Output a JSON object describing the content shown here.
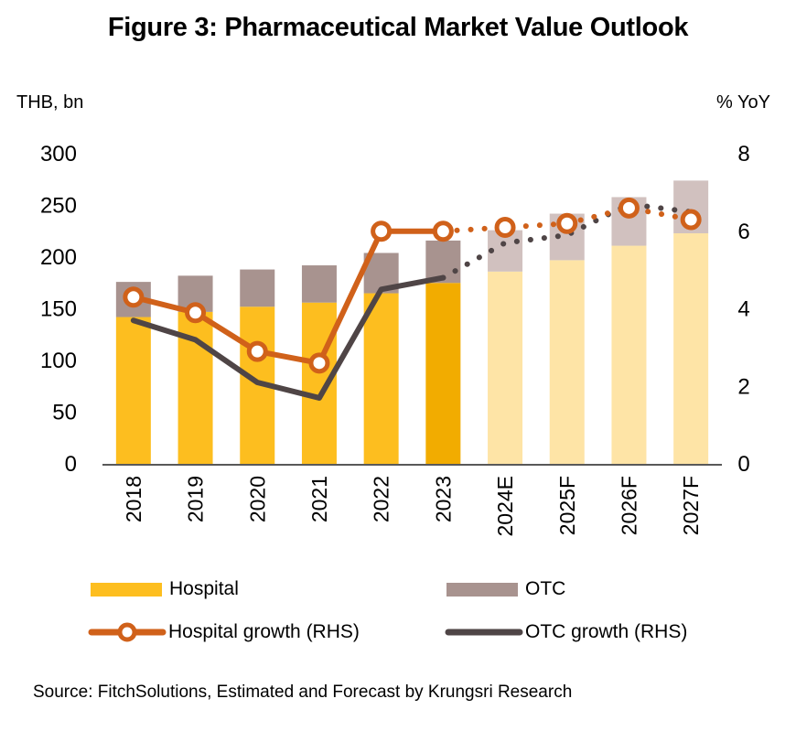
{
  "title": "Figure 3: Pharmaceutical Market Value Outlook",
  "source": "Source: FitchSolutions, Estimated and Forecast by Krungsri Research",
  "colors": {
    "hospital": "#FDBE1F",
    "hospital_latest": "#F2AC00",
    "hospital_forecast": "#FEE4A6",
    "otc": "#A8938F",
    "otc_forecast": "#D1C1BF",
    "hospital_growth": "#D0611A",
    "otc_growth": "#4F4546",
    "axis": "#595959"
  },
  "legend": [
    {
      "key": "hospital",
      "label": "Hospital"
    },
    {
      "key": "otc",
      "label": "OTC"
    },
    {
      "key": "hospital_growth",
      "label": "Hospital growth (RHS)"
    },
    {
      "key": "otc_growth",
      "label": "OTC growth (RHS)"
    }
  ],
  "chart_data": {
    "type": "bar",
    "title": "Figure 3: Pharmaceutical Market Value Outlook",
    "ylabel": "THB, bn",
    "y2label": "% YoY",
    "ylim": [
      0,
      300
    ],
    "y2lim": [
      0,
      8
    ],
    "yticks": [
      0,
      50,
      100,
      150,
      200,
      250,
      300
    ],
    "y2ticks": [
      0,
      2,
      4,
      6,
      8
    ],
    "grid": false,
    "legend_position": "bottom",
    "categories": [
      "2018",
      "2019",
      "2020",
      "2021",
      "2022",
      "2023",
      "2024E",
      "2025F",
      "2026F",
      "2027F"
    ],
    "forecast_start_index": 6,
    "highlight_index": 5,
    "series": [
      {
        "name": "Hospital",
        "type": "stacked-bar",
        "axis": "left",
        "values": [
          142,
          147,
          152,
          156,
          165,
          175,
          186,
          197,
          211,
          223
        ]
      },
      {
        "name": "OTC",
        "type": "stacked-bar",
        "axis": "left",
        "values": [
          34,
          35,
          36,
          36,
          39,
          41,
          40,
          45,
          47,
          51
        ]
      },
      {
        "name": "Hospital growth (RHS)",
        "type": "line",
        "axis": "right",
        "marker": "circle",
        "values": [
          4.3,
          3.9,
          2.9,
          2.6,
          6.0,
          6.0,
          6.1,
          6.2,
          6.6,
          6.3
        ]
      },
      {
        "name": "OTC growth (RHS)",
        "type": "line",
        "axis": "right",
        "values": [
          3.7,
          3.2,
          2.1,
          1.7,
          4.5,
          4.8,
          5.7,
          5.9,
          6.7,
          6.5
        ]
      }
    ]
  }
}
